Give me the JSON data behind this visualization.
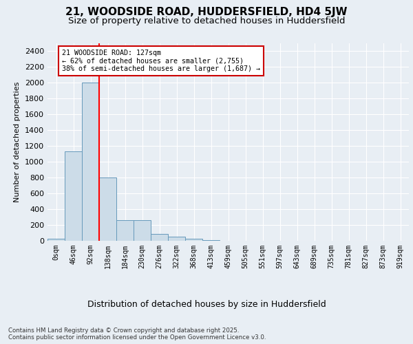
{
  "title_line1": "21, WOODSIDE ROAD, HUDDERSFIELD, HD4 5JW",
  "title_line2": "Size of property relative to detached houses in Huddersfield",
  "xlabel": "Distribution of detached houses by size in Huddersfield",
  "ylabel": "Number of detached properties",
  "footnote": "Contains HM Land Registry data © Crown copyright and database right 2025.\nContains public sector information licensed under the Open Government Licence v3.0.",
  "bar_labels": [
    "0sqm",
    "46sqm",
    "92sqm",
    "138sqm",
    "184sqm",
    "230sqm",
    "276sqm",
    "322sqm",
    "368sqm",
    "413sqm",
    "459sqm",
    "505sqm",
    "551sqm",
    "597sqm",
    "643sqm",
    "689sqm",
    "735sqm",
    "781sqm",
    "827sqm",
    "873sqm",
    "919sqm"
  ],
  "bar_values": [
    30,
    1130,
    2000,
    800,
    260,
    260,
    90,
    55,
    25,
    10,
    0,
    0,
    0,
    0,
    0,
    0,
    0,
    0,
    0,
    0,
    0
  ],
  "bar_color": "#ccdce8",
  "bar_edge_color": "#6699bb",
  "ylim": [
    0,
    2500
  ],
  "yticks": [
    0,
    200,
    400,
    600,
    800,
    1000,
    1200,
    1400,
    1600,
    1800,
    2000,
    2200,
    2400
  ],
  "red_line_x": 2.5,
  "annotation_text": "21 WOODSIDE ROAD: 127sqm\n← 62% of detached houses are smaller (2,755)\n38% of semi-detached houses are larger (1,687) →",
  "annotation_box_color": "#ffffff",
  "annotation_box_edge_color": "#cc0000",
  "background_color": "#e8eef4",
  "plot_bg_color": "#e8eef4",
  "grid_color": "#ffffff",
  "title_fontsize": 11,
  "subtitle_fontsize": 9.5,
  "tick_fontsize": 7,
  "ylabel_fontsize": 8,
  "xlabel_fontsize": 9
}
